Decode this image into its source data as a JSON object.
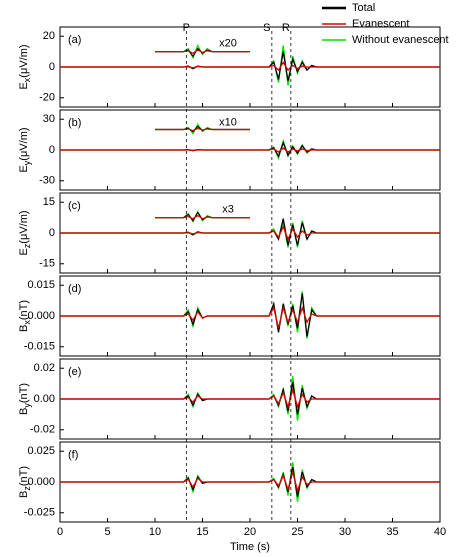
{
  "chart_data": [
    {
      "type": "line",
      "panel_label": "(a)",
      "ylabel_symbol": "E",
      "ylabel_subscript": "x",
      "ylabel_unit": "(μV/m)",
      "x": [
        0,
        12,
        12.5,
        13,
        13.5,
        14,
        14.5,
        15,
        15.5,
        16,
        21,
        21.5,
        22,
        22.5,
        23,
        23.5,
        24,
        24.5,
        25,
        25.5,
        26,
        26.5,
        27,
        27.5,
        28,
        40
      ],
      "xlim": [
        0,
        40
      ],
      "xticks": [
        0,
        5,
        10,
        15,
        20,
        25,
        30,
        35,
        40
      ],
      "ylim": [
        -26,
        26
      ],
      "yticks": [
        -20,
        0,
        20
      ],
      "phases": [
        {
          "label": "P",
          "x": 13.3
        },
        {
          "label": "S",
          "x": 22.3
        },
        {
          "label": "R",
          "x": 24.3
        }
      ],
      "series": [
        {
          "name": "Total",
          "color": "#000000",
          "values": [
            0,
            0,
            0,
            0,
            0.5,
            -1,
            0.5,
            0,
            0,
            0,
            0,
            0,
            0,
            3,
            -8,
            10,
            -9,
            5,
            -3,
            3,
            -2,
            1,
            0,
            0,
            0,
            0
          ]
        },
        {
          "name": "Evanescent",
          "color": "#e00000",
          "values": [
            0,
            0,
            0,
            0,
            0.2,
            -0.5,
            0.3,
            0,
            0,
            0,
            0,
            0,
            0,
            1,
            -2,
            3,
            -2,
            1,
            -1,
            0.5,
            0,
            0,
            0,
            0,
            0,
            0
          ]
        },
        {
          "name": "Without evanescent",
          "color": "#00e000",
          "values": [
            0,
            0,
            0,
            0,
            0.6,
            -1.2,
            0.6,
            0,
            0,
            0,
            0,
            0,
            0,
            4,
            -10,
            14,
            -12,
            7,
            -4,
            4,
            -2,
            1,
            0,
            0,
            0,
            0
          ]
        }
      ],
      "inset_label": "x20",
      "inset_x": [
        10,
        13,
        13.5,
        14,
        14.5,
        15,
        15.5,
        16,
        20
      ],
      "inset_series": [
        {
          "color": "#000000",
          "values": [
            10,
            10,
            11,
            7,
            12,
            9,
            11,
            10,
            10
          ]
        },
        {
          "color": "#e00000",
          "values": [
            10,
            10,
            10.5,
            9,
            11,
            9.5,
            10.5,
            10,
            10
          ]
        },
        {
          "color": "#00e000",
          "values": [
            10,
            10,
            12,
            6,
            14,
            8,
            12,
            10,
            10
          ]
        }
      ]
    },
    {
      "type": "line",
      "panel_label": "(b)",
      "ylabel_symbol": "E",
      "ylabel_subscript": "y",
      "ylabel_unit": "(μV/m)",
      "x": [
        0,
        12,
        12.5,
        13,
        13.5,
        14,
        14.5,
        15,
        15.5,
        16,
        21,
        21.5,
        22,
        22.5,
        23,
        23.5,
        24,
        24.5,
        25,
        25.5,
        26,
        26.5,
        27,
        27.5,
        28,
        40
      ],
      "xlim": [
        0,
        40
      ],
      "xticks": [
        0,
        5,
        10,
        15,
        20,
        25,
        30,
        35,
        40
      ],
      "ylim": [
        -39,
        39
      ],
      "yticks": [
        -30,
        0,
        30
      ],
      "series": [
        {
          "name": "Total",
          "color": "#000000",
          "values": [
            0,
            0,
            0,
            0,
            0.3,
            -0.6,
            0.3,
            0,
            0,
            0,
            0,
            0,
            0,
            2,
            -6,
            7,
            -5,
            3,
            -3,
            4,
            -2,
            1,
            0,
            0,
            0,
            0
          ]
        },
        {
          "name": "Evanescent",
          "color": "#e00000",
          "values": [
            0,
            0,
            0,
            0,
            0.1,
            -0.3,
            0.1,
            0,
            0,
            0,
            0,
            0,
            0,
            1,
            -2,
            2,
            -2,
            1,
            -1,
            1,
            -0.5,
            0,
            0,
            0,
            0,
            0
          ]
        },
        {
          "name": "Without evanescent",
          "color": "#00e000",
          "values": [
            0,
            0,
            0,
            0,
            0.4,
            -0.8,
            0.4,
            0,
            0,
            0,
            0,
            0,
            0,
            3,
            -8,
            9,
            -6,
            4,
            -4,
            5,
            -3,
            1,
            0,
            0,
            0,
            0
          ]
        }
      ],
      "inset_label": "x10",
      "inset_x": [
        10,
        13,
        13.5,
        14,
        14.5,
        15,
        15.5,
        16,
        20
      ],
      "inset_series": [
        {
          "color": "#000000",
          "values": [
            20,
            20,
            21,
            18,
            23,
            19,
            21,
            20,
            20
          ]
        },
        {
          "color": "#e00000",
          "values": [
            20,
            20,
            20.5,
            19,
            21,
            19.5,
            20.5,
            20,
            20
          ]
        },
        {
          "color": "#00e000",
          "values": [
            20,
            20,
            22,
            16,
            25,
            18,
            22,
            20,
            20
          ]
        }
      ]
    },
    {
      "type": "line",
      "panel_label": "(c)",
      "ylabel_symbol": "E",
      "ylabel_subscript": "z",
      "ylabel_unit": "(μV/m)",
      "x": [
        0,
        12,
        12.5,
        13,
        13.5,
        14,
        14.5,
        15,
        15.5,
        16,
        21,
        21.5,
        22,
        22.5,
        23,
        23.5,
        24,
        24.5,
        25,
        25.5,
        26,
        26.5,
        27,
        27.5,
        28,
        40
      ],
      "xlim": [
        0,
        40
      ],
      "xticks": [
        0,
        5,
        10,
        15,
        20,
        25,
        30,
        35,
        40
      ],
      "ylim": [
        -19.5,
        19.5
      ],
      "yticks": [
        -15,
        0,
        15
      ],
      "series": [
        {
          "name": "Total",
          "color": "#000000",
          "values": [
            0,
            0,
            0,
            0,
            0.3,
            -0.8,
            0.5,
            0,
            0,
            0,
            0,
            0,
            0,
            1,
            -3,
            7,
            -6,
            4,
            -6,
            5,
            -3,
            1,
            0,
            0,
            0,
            0
          ]
        },
        {
          "name": "Evanescent",
          "color": "#e00000",
          "values": [
            0,
            0,
            0,
            0,
            0.1,
            -0.4,
            0.2,
            0,
            0,
            0,
            0,
            0,
            0,
            1,
            -2,
            3,
            -3,
            2,
            -2,
            1,
            -1,
            0,
            0,
            0,
            0,
            0
          ]
        },
        {
          "name": "Without evanescent",
          "color": "#00e000",
          "values": [
            0,
            0,
            0,
            0,
            0.4,
            -1,
            0.6,
            0,
            0,
            0,
            0,
            0,
            0,
            2,
            -3,
            5,
            -7,
            5,
            -7,
            6,
            -3,
            1,
            0,
            0,
            0,
            0
          ]
        }
      ],
      "inset_label": "x3",
      "inset_x": [
        10,
        13,
        13.5,
        14,
        14.5,
        15,
        15.5,
        16,
        20
      ],
      "inset_series": [
        {
          "color": "#000000",
          "values": [
            7.5,
            7.5,
            9,
            6,
            10,
            6.5,
            8,
            7.5,
            7.5
          ]
        },
        {
          "color": "#e00000",
          "values": [
            7.5,
            7.5,
            8,
            7,
            8.5,
            7,
            7.8,
            7.5,
            7.5
          ]
        },
        {
          "color": "#00e000",
          "values": [
            7.5,
            7.5,
            9.5,
            5.5,
            10.5,
            6,
            8.5,
            7.5,
            7.5
          ]
        }
      ]
    },
    {
      "type": "line",
      "panel_label": "(d)",
      "ylabel_symbol": "B",
      "ylabel_subscript": "x",
      "ylabel_unit": "(nT)",
      "x": [
        0,
        12,
        12.5,
        13,
        13.5,
        14,
        14.5,
        15,
        15.5,
        16,
        21,
        21.5,
        22,
        22.5,
        23,
        23.5,
        24,
        24.5,
        25,
        25.5,
        26,
        26.5,
        27,
        27.5,
        28,
        40
      ],
      "xlim": [
        0,
        40
      ],
      "xticks": [
        0,
        5,
        10,
        15,
        20,
        25,
        30,
        35,
        40
      ],
      "ylim": [
        -0.0195,
        0.0195
      ],
      "yticks": [
        -0.015,
        {
          "value": 0,
          "label": "0.000"
        },
        0.015
      ],
      "series": [
        {
          "name": "Total",
          "color": "#000000",
          "values": [
            0,
            0,
            0,
            0,
            0.002,
            -0.004,
            0.003,
            -0.001,
            0,
            0,
            0,
            0,
            0,
            0.006,
            -0.008,
            0.006,
            -0.004,
            0.005,
            -0.006,
            0.011,
            -0.01,
            0.003,
            0,
            0,
            0,
            0
          ]
        },
        {
          "name": "Evanescent",
          "color": "#e00000",
          "values": [
            0,
            0,
            0,
            0,
            0.001,
            -0.002,
            0.002,
            -0.001,
            0,
            0,
            0,
            0,
            0,
            0.004,
            -0.006,
            0.004,
            -0.003,
            0.003,
            -0.003,
            0.004,
            -0.003,
            0.001,
            0,
            0,
            0,
            0
          ]
        },
        {
          "name": "Without evanescent",
          "color": "#00e000",
          "values": [
            0,
            0,
            0,
            0,
            0.003,
            -0.005,
            0.004,
            -0.001,
            0,
            0,
            0,
            0,
            0,
            0.005,
            -0.007,
            0.005,
            -0.005,
            0.006,
            -0.008,
            0.012,
            -0.011,
            0.004,
            0,
            0,
            0,
            0
          ]
        }
      ]
    },
    {
      "type": "line",
      "panel_label": "(e)",
      "ylabel_symbol": "B",
      "ylabel_subscript": "y",
      "ylabel_unit": "(nT)",
      "x": [
        0,
        12,
        12.5,
        13,
        13.5,
        14,
        14.5,
        15,
        15.5,
        16,
        21,
        21.5,
        22,
        22.5,
        23,
        23.5,
        24,
        24.5,
        25,
        25.5,
        26,
        26.5,
        27,
        27.5,
        28,
        40
      ],
      "xlim": [
        0,
        40
      ],
      "xticks": [
        0,
        5,
        10,
        15,
        20,
        25,
        30,
        35,
        40
      ],
      "ylim": [
        -0.026,
        0.026
      ],
      "yticks": [
        -0.02,
        {
          "value": 0,
          "label": "0.00"
        },
        0.02
      ],
      "series": [
        {
          "name": "Total",
          "color": "#000000",
          "values": [
            0,
            0,
            0,
            0,
            0.002,
            -0.004,
            0.003,
            -0.001,
            0,
            0,
            0,
            0,
            0,
            0.002,
            -0.004,
            0.006,
            -0.008,
            0.011,
            -0.01,
            0.007,
            -0.005,
            0.002,
            0,
            0,
            0,
            0
          ]
        },
        {
          "name": "Evanescent",
          "color": "#e00000",
          "values": [
            0,
            0,
            0,
            0,
            0.001,
            -0.002,
            0.002,
            0,
            0,
            0,
            0,
            0,
            0,
            0.002,
            -0.003,
            0.004,
            -0.005,
            0.006,
            -0.005,
            0.003,
            -0.002,
            0,
            0,
            0,
            0,
            0
          ]
        },
        {
          "name": "Without evanescent",
          "color": "#00e000",
          "values": [
            0,
            0,
            0,
            0,
            0.003,
            -0.005,
            0.004,
            -0.001,
            0,
            0,
            0,
            0,
            0,
            0.003,
            -0.005,
            0.007,
            -0.01,
            0.015,
            -0.014,
            0.009,
            -0.006,
            0.002,
            0,
            0,
            0,
            0
          ]
        }
      ]
    },
    {
      "type": "line",
      "panel_label": "(f)",
      "ylabel_symbol": "B",
      "ylabel_subscript": "z",
      "ylabel_unit": "(nT)",
      "xlabel": "Time (s)",
      "x": [
        0,
        12,
        12.5,
        13,
        13.5,
        14,
        14.5,
        15,
        15.5,
        16,
        21,
        21.5,
        22,
        22.5,
        23,
        23.5,
        24,
        24.5,
        25,
        25.5,
        26,
        26.5,
        27,
        27.5,
        28,
        40
      ],
      "xlim": [
        0,
        40
      ],
      "xticks": [
        0,
        5,
        10,
        15,
        20,
        25,
        30,
        35,
        40
      ],
      "ylim": [
        -0.0325,
        0.0325
      ],
      "yticks": [
        -0.025,
        {
          "value": 0,
          "label": "0.000"
        },
        0.025
      ],
      "series": [
        {
          "name": "Total",
          "color": "#000000",
          "values": [
            0,
            0,
            0,
            0,
            0.003,
            -0.006,
            0.004,
            -0.001,
            0,
            0,
            0,
            0,
            0,
            0.002,
            -0.004,
            0.006,
            -0.008,
            0.012,
            -0.012,
            0.008,
            -0.004,
            0.002,
            0,
            0,
            0,
            0
          ]
        },
        {
          "name": "Evanescent",
          "color": "#e00000",
          "values": [
            0,
            0,
            0,
            0,
            0.002,
            -0.004,
            0.003,
            0,
            0,
            0,
            0,
            0,
            0,
            0.002,
            -0.003,
            0.005,
            -0.006,
            0.008,
            -0.007,
            0.004,
            -0.002,
            0,
            0,
            0,
            0,
            0
          ]
        },
        {
          "name": "Without evanescent",
          "color": "#00e000",
          "values": [
            0,
            0,
            0,
            0,
            0.004,
            -0.008,
            0.005,
            -0.001,
            0,
            0,
            0,
            0,
            0,
            0.003,
            -0.005,
            0.008,
            -0.011,
            0.016,
            -0.016,
            0.01,
            -0.005,
            0.002,
            0,
            0,
            0,
            0
          ]
        }
      ]
    }
  ]
}
